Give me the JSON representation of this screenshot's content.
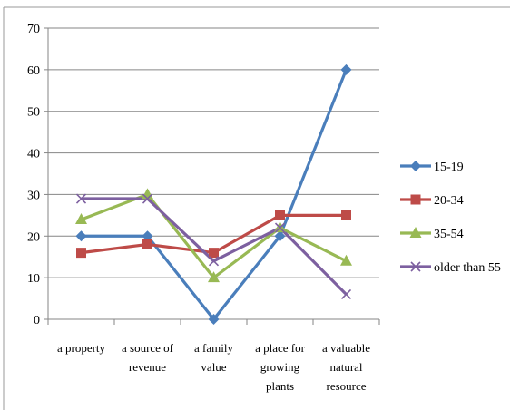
{
  "chart_data": {
    "type": "line",
    "categories": [
      [
        "a property"
      ],
      [
        "a source of",
        "revenue"
      ],
      [
        "a family",
        "value"
      ],
      [
        "a place for",
        "growing",
        "plants"
      ],
      [
        "a valuable",
        "natural",
        "resource"
      ]
    ],
    "ylim": [
      0,
      70
    ],
    "yticks": [
      "0",
      "10",
      "20",
      "30",
      "40",
      "50",
      "60",
      "70"
    ],
    "grid": true,
    "legend_position": "right",
    "series": [
      {
        "name": "15-19",
        "values": [
          20,
          20,
          0,
          20,
          60
        ],
        "color": "#4a7ebb",
        "marker": "diamond"
      },
      {
        "name": "20-34",
        "values": [
          16,
          18,
          16,
          25,
          25
        ],
        "color": "#be4b48",
        "marker": "square"
      },
      {
        "name": "35-54",
        "values": [
          24,
          30,
          10,
          22,
          14
        ],
        "color": "#98b954",
        "marker": "triangle"
      },
      {
        "name": "older than 55",
        "values": [
          29,
          29,
          14,
          22,
          6
        ],
        "color": "#7d60a0",
        "marker": "x"
      }
    ]
  }
}
